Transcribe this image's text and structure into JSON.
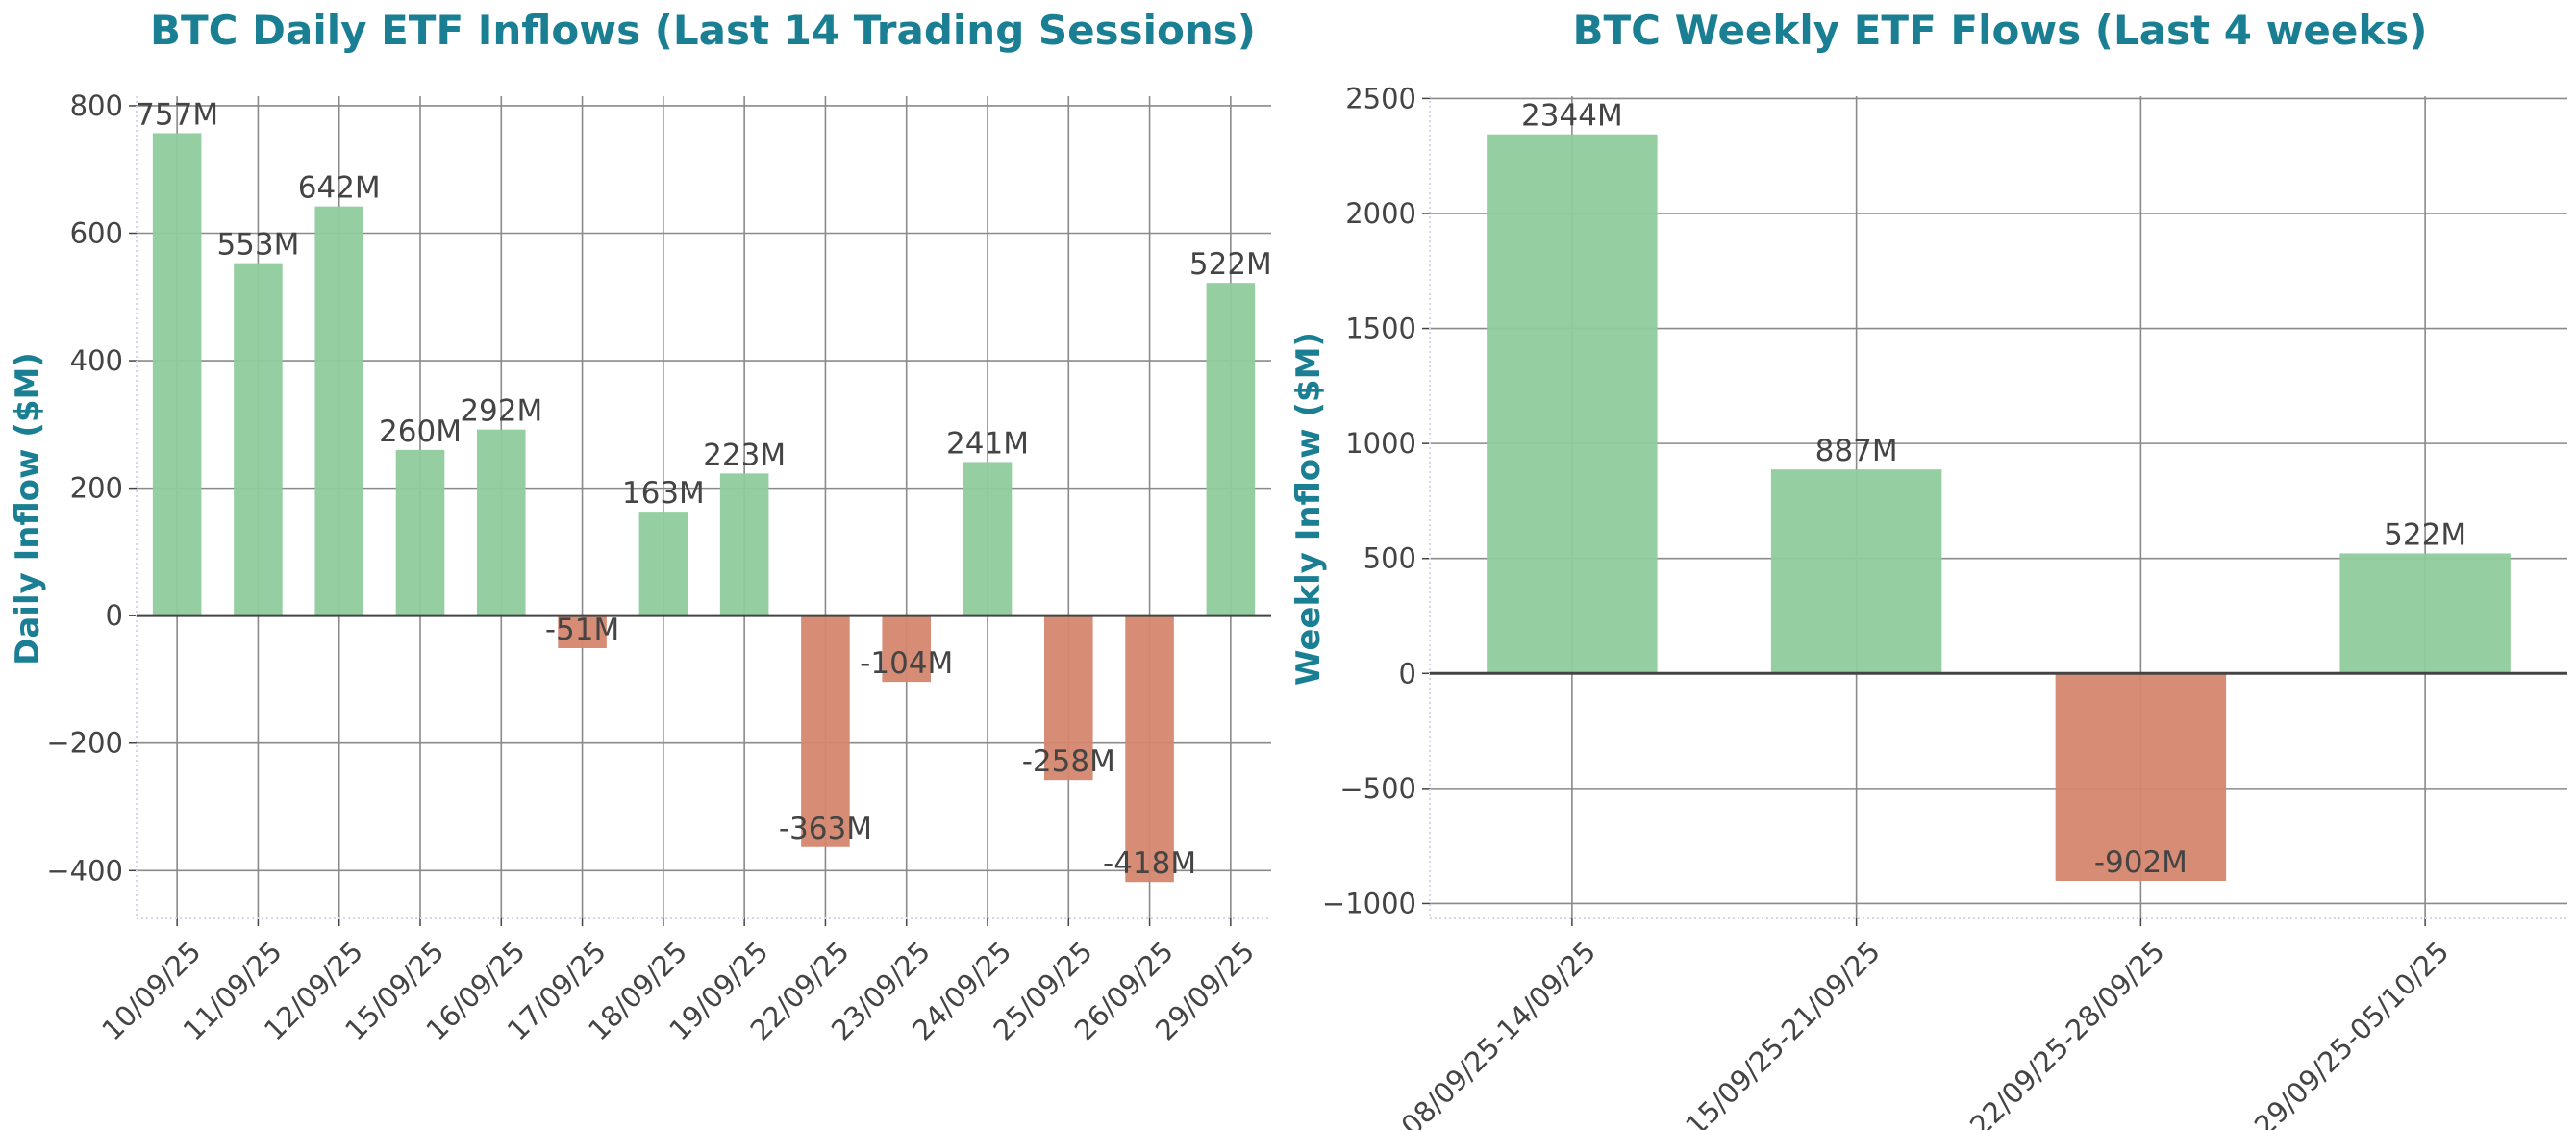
{
  "colors": {
    "positive": "#8ecb9c",
    "negative": "#d4866e",
    "title": "#1a7f93",
    "text": "#444444"
  },
  "chart_data": [
    {
      "type": "bar",
      "title": "BTC Daily ETF Inflows (Last 14 Trading Sessions)",
      "xlabel": "",
      "ylabel": "Daily Inflow ($M)",
      "categories": [
        "10/09/25",
        "11/09/25",
        "12/09/25",
        "15/09/25",
        "16/09/25",
        "17/09/25",
        "18/09/25",
        "19/09/25",
        "22/09/25",
        "23/09/25",
        "24/09/25",
        "25/09/25",
        "26/09/25",
        "29/09/25"
      ],
      "values": [
        757,
        553,
        642,
        260,
        292,
        -51,
        163,
        223,
        -363,
        -104,
        241,
        -258,
        -418,
        522
      ],
      "labels": [
        "757M",
        "553M",
        "642M",
        "260M",
        "292M",
        "-51M",
        "163M",
        "223M",
        "-363M",
        "-104M",
        "241M",
        "-258M",
        "-418M",
        "522M"
      ],
      "ylim": [
        -475,
        815
      ],
      "yticks": [
        -400,
        -200,
        0,
        200,
        400,
        600,
        800
      ],
      "ytick_labels": [
        "−400",
        "−200",
        "0",
        "200",
        "400",
        "600",
        "800"
      ],
      "grid": true,
      "legend": "none"
    },
    {
      "type": "bar",
      "title": "BTC Weekly ETF Flows (Last 4 weeks)",
      "xlabel": "",
      "ylabel": "Weekly Inflow ($M)",
      "categories": [
        "08/09/25-14/09/25",
        "15/09/25-21/09/25",
        "22/09/25-28/09/25",
        "29/09/25-05/10/25"
      ],
      "values": [
        2344,
        887,
        -902,
        522
      ],
      "labels": [
        "2344M",
        "887M",
        "-902M",
        "522M"
      ],
      "ylim": [
        -1065,
        2510
      ],
      "yticks": [
        -1000,
        -500,
        0,
        500,
        1000,
        1500,
        2000,
        2500
      ],
      "ytick_labels": [
        "−1000",
        "−500",
        "0",
        "500",
        "1000",
        "1500",
        "2000",
        "2500"
      ],
      "grid": true,
      "legend": "none"
    }
  ]
}
